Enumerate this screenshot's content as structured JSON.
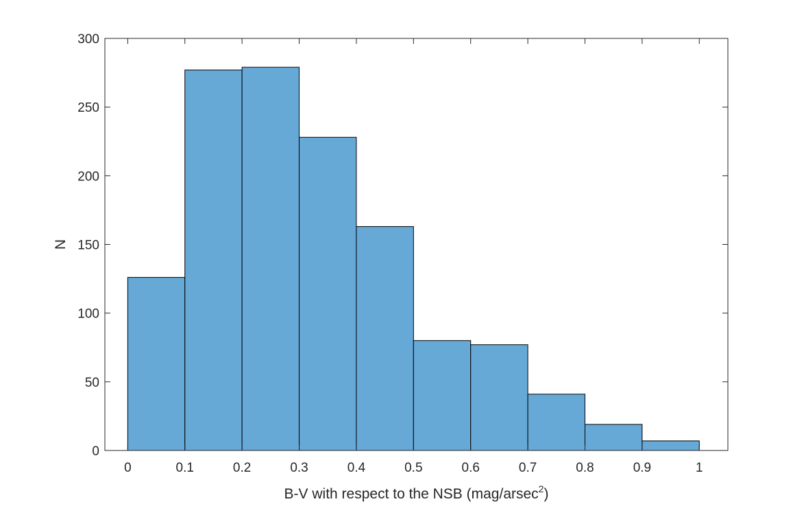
{
  "chart_data": {
    "type": "bar",
    "subtype": "histogram",
    "title": "",
    "xlabel": "B-V with respect to the NSB (mag/arsec",
    "xlabel_superscript": "2",
    "xlabel_suffix": ")",
    "ylabel": "N",
    "bin_edges": [
      0,
      0.1,
      0.2,
      0.3,
      0.4,
      0.5,
      0.6,
      0.7,
      0.8,
      0.9,
      1.0
    ],
    "values": [
      126,
      277,
      279,
      228,
      163,
      80,
      77,
      41,
      19,
      7
    ],
    "xlim": [
      -0.04,
      1.05
    ],
    "ylim": [
      0,
      300
    ],
    "xticks": [
      "0",
      "0.1",
      "0.2",
      "0.3",
      "0.4",
      "0.5",
      "0.6",
      "0.7",
      "0.8",
      "0.9",
      "1"
    ],
    "yticks": [
      "0",
      "50",
      "100",
      "150",
      "200",
      "250",
      "300"
    ],
    "grid": false,
    "legend": "none",
    "colors": {
      "bar_fill": "#66a9d7",
      "bar_edge": "#000000",
      "axis": "#262626"
    }
  }
}
